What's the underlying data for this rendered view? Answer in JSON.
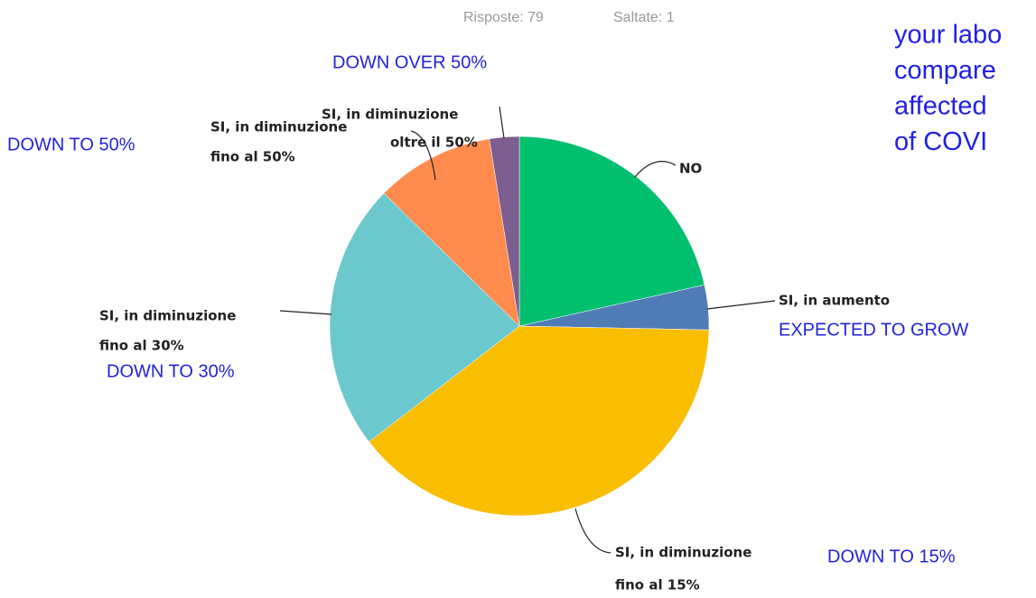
{
  "chart_data": {
    "type": "pie",
    "responses": "Risposte: 79",
    "skipped": "Saltate: 1",
    "categories": [
      [
        "NO"
      ],
      [
        "SI, in aumento"
      ],
      [
        "SI, in diminuzione",
        "fino al 15%"
      ],
      [
        "SI, in diminuzione",
        "fino al 30%"
      ],
      [
        "SI, in diminuzione",
        "fino al 50%"
      ],
      [
        "SI, in diminuzione",
        "oltre il 50%"
      ]
    ],
    "values": [
      17,
      3,
      31,
      18,
      8,
      2
    ],
    "colors": [
      "#00bf6f",
      "#507cb6",
      "#f9be00",
      "#6bc8cd",
      "#ff8b4f",
      "#7d5e90"
    ],
    "annotations": [
      "DOWN OVER 50%",
      "DOWN TO 50%",
      "EXPECTED TO GROW",
      "DOWN TO 30%",
      "DOWN TO 15%"
    ],
    "side_text": [
      "your labo",
      "compare",
      "affected",
      "of COVI"
    ]
  }
}
